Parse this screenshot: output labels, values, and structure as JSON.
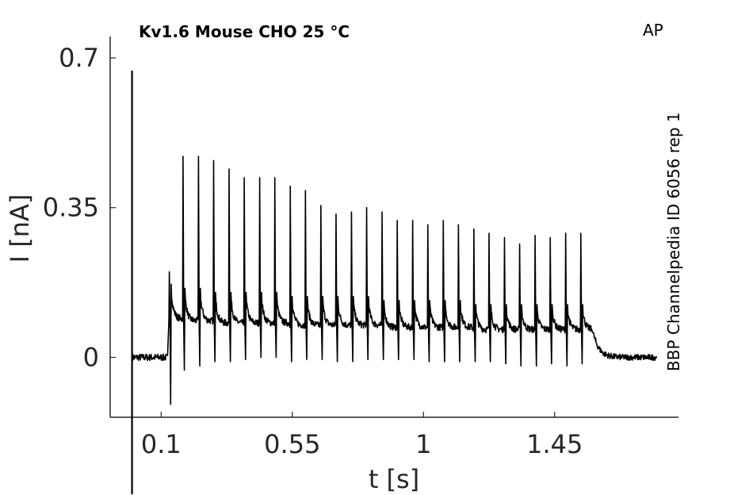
{
  "chart_data": {
    "type": "line",
    "title": "Kv1.6  Mouse  CHO  25 °C",
    "protocol_label": "AP",
    "source_label": "BBP Channelpedia ID 6056 rep 1",
    "xlabel": "t [s]",
    "ylabel": "I [nA]",
    "xlim": [
      -0.075,
      1.875
    ],
    "ylim": [
      -0.14,
      0.75
    ],
    "xticks": [
      0.1,
      0.55,
      1,
      1.45
    ],
    "xtick_labels": [
      "0.1",
      "0.55",
      "1",
      "1.45"
    ],
    "yticks": [
      0,
      0.35,
      0.7
    ],
    "ytick_labels": [
      "0",
      "0.35",
      "0.7"
    ],
    "grid": false,
    "series": [
      {
        "color": "#000000",
        "baseline": 0.0,
        "trace_end": 1.8,
        "stimulus_artifact": {
          "x": 0.0,
          "y_top": 0.67,
          "y_bottom": -0.32
        },
        "spikes": {
          "x": [
            0.128,
            0.175,
            0.228,
            0.28,
            0.333,
            0.385,
            0.438,
            0.49,
            0.543,
            0.595,
            0.648,
            0.7,
            0.753,
            0.805,
            0.858,
            0.91,
            0.963,
            1.015,
            1.068,
            1.12,
            1.173,
            1.225,
            1.278,
            1.33,
            1.383,
            1.435,
            1.488,
            1.54
          ],
          "peak": [
            0.2,
            0.47,
            0.47,
            0.46,
            0.44,
            0.42,
            0.42,
            0.42,
            0.4,
            0.39,
            0.355,
            0.335,
            0.34,
            0.35,
            0.34,
            0.32,
            0.32,
            0.31,
            0.32,
            0.31,
            0.3,
            0.29,
            0.28,
            0.265,
            0.285,
            0.28,
            0.29,
            0.29
          ],
          "trough": [
            -0.11,
            -0.03,
            -0.02,
            -0.01,
            -0.01,
            -0.005,
            0.0,
            0.0,
            -0.01,
            -0.005,
            -0.005,
            -0.01,
            -0.01,
            -0.005,
            -0.005,
            -0.005,
            -0.005,
            -0.01,
            -0.01,
            -0.01,
            -0.01,
            -0.01,
            -0.015,
            -0.02,
            -0.02,
            -0.015,
            -0.02,
            -0.015
          ],
          "plateau": [
            0.09,
            0.085,
            0.085,
            0.08,
            0.08,
            0.08,
            0.08,
            0.08,
            0.075,
            0.075,
            0.075,
            0.075,
            0.075,
            0.075,
            0.07,
            0.07,
            0.07,
            0.07,
            0.07,
            0.07,
            0.065,
            0.065,
            0.065,
            0.065,
            0.065,
            0.065,
            0.065,
            0.065
          ]
        },
        "offset_start": 1.58
      }
    ]
  }
}
